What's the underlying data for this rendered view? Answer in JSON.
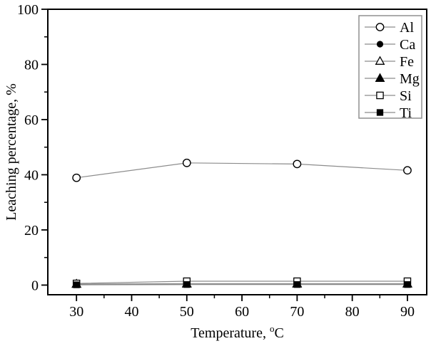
{
  "figure": {
    "background": "#ffffff",
    "axis_color": "#000000",
    "data_line_color": "#8c8c8c",
    "marker_edge_color": "#000000",
    "legend_border_color": "#8f8f8f"
  },
  "chart_data": {
    "type": "line",
    "title": "",
    "xlabel": "Temperature, °C",
    "ylabel": "Leaching percentage, %",
    "x": [
      30,
      50,
      70,
      90
    ],
    "xlim": [
      24.8,
      93.5
    ],
    "ylim": [
      -3.5,
      100
    ],
    "x_major_ticks": [
      30,
      40,
      50,
      60,
      70,
      80,
      90
    ],
    "x_minor_ticks": [
      35,
      45,
      55,
      65,
      75,
      85
    ],
    "y_major_ticks": [
      0,
      20,
      40,
      60,
      80,
      100
    ],
    "y_minor_ticks": [
      10,
      30,
      50,
      70,
      90
    ],
    "grid": false,
    "legend_position": "top-right",
    "series": [
      {
        "name": "Al",
        "marker": "circle-open",
        "values": [
          38.9,
          44.3,
          43.9,
          41.6
        ]
      },
      {
        "name": "Ca",
        "marker": "circle-filled",
        "values": [
          0.2,
          0.3,
          0.3,
          0.3
        ]
      },
      {
        "name": "Fe",
        "marker": "triangle-open",
        "values": [
          0.4,
          0.5,
          0.5,
          0.5
        ]
      },
      {
        "name": "Mg",
        "marker": "triangle-filled",
        "values": [
          0.3,
          0.4,
          0.4,
          0.4
        ]
      },
      {
        "name": "Si",
        "marker": "square-open",
        "values": [
          0.6,
          1.4,
          1.4,
          1.4
        ]
      },
      {
        "name": "Ti",
        "marker": "square-filled",
        "values": [
          0.1,
          0.2,
          0.2,
          0.2
        ]
      }
    ]
  }
}
